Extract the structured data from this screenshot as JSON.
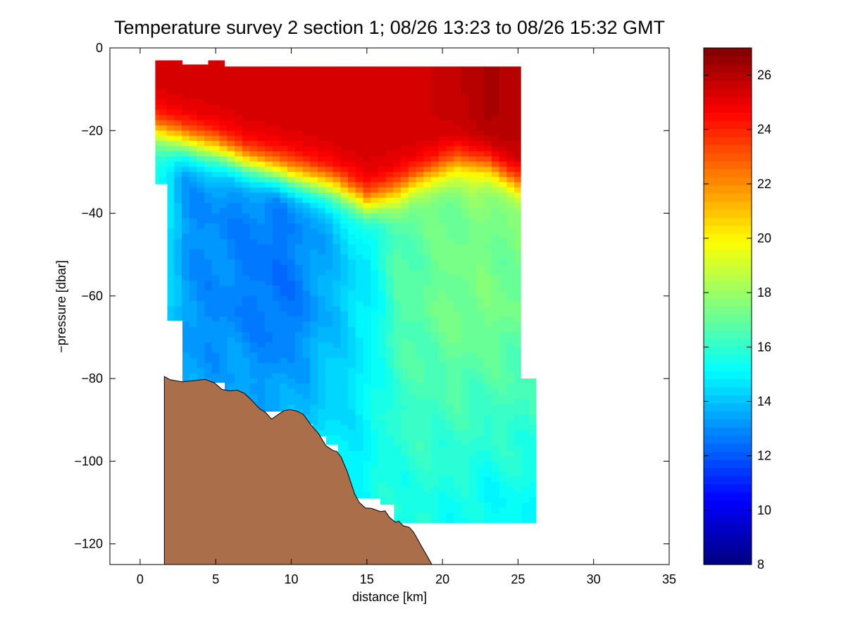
{
  "chart_data": {
    "type": "heatmap",
    "title": "Temperature survey 2 section 1; 08/26 13:23 to 08/26 15:32 GMT",
    "xlabel": "distance [km]",
    "ylabel": "−pressure [dbar]",
    "xlim": [
      -2,
      35
    ],
    "ylim": [
      -125,
      0
    ],
    "x_ticks": [
      0,
      5,
      10,
      15,
      20,
      25,
      30,
      35
    ],
    "y_ticks": [
      0,
      -20,
      -40,
      -60,
      -80,
      -100,
      -120
    ],
    "x_tick_labels": [
      "0",
      "5",
      "10",
      "15",
      "20",
      "25",
      "30",
      "35"
    ],
    "y_tick_labels": [
      "0",
      "−20",
      "−40",
      "−60",
      "−80",
      "−100",
      "−120"
    ],
    "colorbar": {
      "colormap": "jet",
      "range": [
        8,
        27
      ],
      "ticks": [
        8,
        10,
        12,
        14,
        16,
        18,
        20,
        22,
        24,
        26
      ],
      "tick_labels": [
        "8",
        "10",
        "12",
        "14",
        "16",
        "18",
        "20",
        "22",
        "24",
        "26"
      ]
    },
    "field": {
      "variable": "temperature",
      "x": [
        1,
        3,
        5,
        7,
        9,
        11,
        13,
        15,
        17,
        19,
        21,
        23,
        25
      ],
      "depth": [
        -5,
        -10,
        -15,
        -20,
        -25,
        -30,
        -35,
        -40,
        -45,
        -50,
        -55,
        -60,
        -65,
        -70,
        -75,
        -80,
        -85,
        -90,
        -95,
        -100,
        -105,
        -110,
        -115
      ],
      "surface_top": -4.5,
      "thermocline_depth": [
        -20,
        -23,
        -25,
        -28,
        -30,
        -32,
        -34,
        -38,
        -35,
        -31,
        -28,
        -29,
        -33
      ],
      "upper_layer_temp": [
        25.4,
        25.4,
        25.4,
        25.4,
        25.4,
        25.4,
        25.4,
        25.4,
        25.4,
        25.5,
        25.7,
        26.2,
        26.0
      ],
      "lower_layer_temp": [
        15.5,
        13.2,
        13.0,
        12.8,
        12.5,
        13.0,
        14.0,
        14.8,
        16.5,
        17.0,
        17.3,
        17.3,
        17.2
      ],
      "bottom_temp": [
        15.2,
        13.8,
        14.2,
        14.6,
        14.6,
        14.8,
        15.0,
        15.2,
        15.6,
        15.6,
        15.4,
        15.2,
        15.2
      ],
      "data_extent": [
        [
          1.0,
          -3
        ],
        [
          2.8,
          -3
        ],
        [
          2.8,
          -4
        ],
        [
          4.5,
          -4
        ],
        [
          4.5,
          -3
        ],
        [
          5.6,
          -3
        ],
        [
          5.6,
          -4.5
        ],
        [
          25.2,
          -4.5
        ],
        [
          25.2,
          -80
        ],
        [
          26.2,
          -80
        ],
        [
          26.2,
          -115
        ],
        [
          16.8,
          -115
        ],
        [
          16.8,
          -110.5
        ],
        [
          15.9,
          -110.5
        ],
        [
          15.9,
          -109
        ],
        [
          14.0,
          -109
        ],
        [
          14.0,
          -107
        ],
        [
          13.1,
          -107
        ],
        [
          13.1,
          -96
        ],
        [
          12.3,
          -96
        ],
        [
          12.3,
          -94
        ],
        [
          11.4,
          -94
        ],
        [
          11.4,
          -91
        ],
        [
          10.3,
          -91
        ],
        [
          10.3,
          -88
        ],
        [
          7.5,
          -88
        ],
        [
          7.5,
          -86
        ],
        [
          6.3,
          -86
        ],
        [
          6.3,
          -83
        ],
        [
          5.6,
          -83
        ],
        [
          5.6,
          -81
        ],
        [
          2.8,
          -81
        ],
        [
          2.8,
          -66
        ],
        [
          1.8,
          -66
        ],
        [
          1.8,
          -33
        ],
        [
          1.0,
          -33
        ]
      ]
    },
    "seafloor": {
      "color": "#ab6e4a",
      "profile": [
        [
          1.6,
          -79.5
        ],
        [
          2.0,
          -80.3
        ],
        [
          2.8,
          -80.8
        ],
        [
          3.8,
          -80.4
        ],
        [
          4.3,
          -80.2
        ],
        [
          4.9,
          -81.0
        ],
        [
          5.4,
          -82.6
        ],
        [
          5.9,
          -83.0
        ],
        [
          6.4,
          -82.8
        ],
        [
          6.9,
          -83.6
        ],
        [
          7.4,
          -85.3
        ],
        [
          7.9,
          -87.3
        ],
        [
          8.3,
          -88.2
        ],
        [
          8.7,
          -89.8
        ],
        [
          9.1,
          -88.8
        ],
        [
          9.5,
          -87.8
        ],
        [
          9.9,
          -87.5
        ],
        [
          10.4,
          -87.9
        ],
        [
          10.8,
          -88.7
        ],
        [
          11.3,
          -91.2
        ],
        [
          11.8,
          -93.3
        ],
        [
          12.3,
          -96.3
        ],
        [
          12.8,
          -97.5
        ],
        [
          13.0,
          -97.6
        ],
        [
          13.3,
          -99.0
        ],
        [
          13.7,
          -102.5
        ],
        [
          14.2,
          -108.0
        ],
        [
          14.5,
          -110.0
        ],
        [
          14.9,
          -111.3
        ],
        [
          15.3,
          -111.4
        ],
        [
          15.6,
          -111.8
        ],
        [
          15.9,
          -112.2
        ],
        [
          16.2,
          -112.0
        ],
        [
          16.5,
          -113.6
        ],
        [
          16.9,
          -114.8
        ],
        [
          17.1,
          -114.5
        ],
        [
          17.4,
          -115.6
        ],
        [
          17.8,
          -116.0
        ],
        [
          18.1,
          -117.2
        ],
        [
          18.6,
          -120.5
        ],
        [
          19.0,
          -123.0
        ],
        [
          19.3,
          -125.0
        ]
      ]
    }
  }
}
